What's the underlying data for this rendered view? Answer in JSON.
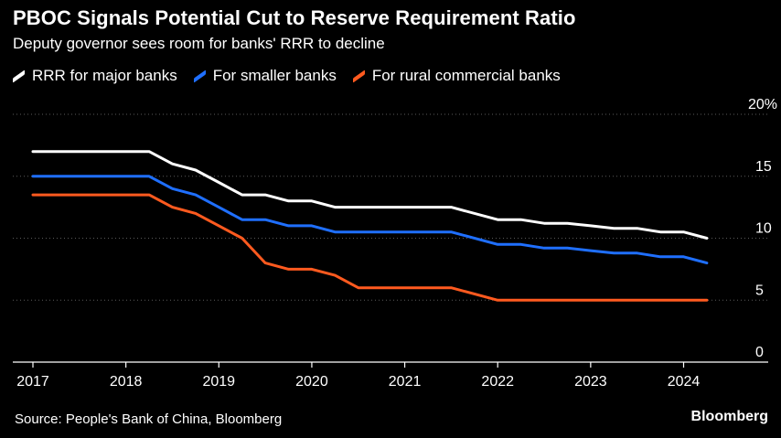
{
  "title": "PBOC Signals Potential Cut to Reserve Requirement Ratio",
  "subtitle": "Deputy governor sees room for banks' RRR to decline",
  "source": "Source: People's Bank of China, Bloomberg",
  "brand": "Bloomberg",
  "colors": {
    "background": "#000000",
    "gridline": "#5a5a5a",
    "axis": "#ffffff",
    "text": "#ffffff"
  },
  "chart_data": {
    "type": "line",
    "title": "PBOC Signals Potential Cut to Reserve Requirement Ratio",
    "subtitle": "Deputy governor sees room for banks' RRR to decline",
    "xlabel": "",
    "ylabel": "",
    "xlim": [
      2017,
      2024.7
    ],
    "ylim": [
      0,
      20
    ],
    "x_ticks": [
      "2017",
      "2018",
      "2019",
      "2020",
      "2021",
      "2022",
      "2023",
      "2024"
    ],
    "y_ticks": [
      "0",
      "5",
      "10",
      "15",
      "20%"
    ],
    "grid": true,
    "y_axis_side": "right",
    "legend_position": "top-left",
    "series": [
      {
        "name": "RRR for major banks",
        "color": "#ffffff",
        "x": [
          2017.0,
          2018.25,
          2018.5,
          2018.75,
          2019.0,
          2019.25,
          2019.5,
          2019.75,
          2020.0,
          2020.25,
          2021.5,
          2022.0,
          2022.25,
          2022.5,
          2022.75,
          2023.0,
          2023.25,
          2023.5,
          2023.75,
          2024.0,
          2024.25
        ],
        "y": [
          17.0,
          17.0,
          16.0,
          15.5,
          14.5,
          13.5,
          13.5,
          13.0,
          13.0,
          12.5,
          12.5,
          11.5,
          11.5,
          11.2,
          11.2,
          11.0,
          10.8,
          10.8,
          10.5,
          10.5,
          10.0
        ]
      },
      {
        "name": "For smaller banks",
        "color": "#1f6fff",
        "x": [
          2017.0,
          2018.25,
          2018.5,
          2018.75,
          2019.0,
          2019.25,
          2019.5,
          2019.75,
          2020.0,
          2020.25,
          2021.5,
          2022.0,
          2022.25,
          2022.5,
          2022.75,
          2023.0,
          2023.25,
          2023.5,
          2023.75,
          2024.0,
          2024.25
        ],
        "y": [
          15.0,
          15.0,
          14.0,
          13.5,
          12.5,
          11.5,
          11.5,
          11.0,
          11.0,
          10.5,
          10.5,
          9.5,
          9.5,
          9.2,
          9.2,
          9.0,
          8.8,
          8.8,
          8.5,
          8.5,
          8.0
        ]
      },
      {
        "name": "For rural commercial banks",
        "color": "#ff5a1f",
        "x": [
          2017.0,
          2018.25,
          2018.5,
          2018.75,
          2019.0,
          2019.25,
          2019.5,
          2019.75,
          2020.0,
          2020.25,
          2020.5,
          2021.5,
          2022.0,
          2024.25
        ],
        "y": [
          13.5,
          13.5,
          12.5,
          12.0,
          11.0,
          10.0,
          8.0,
          7.5,
          7.5,
          7.0,
          6.0,
          6.0,
          5.0,
          5.0
        ]
      }
    ]
  }
}
